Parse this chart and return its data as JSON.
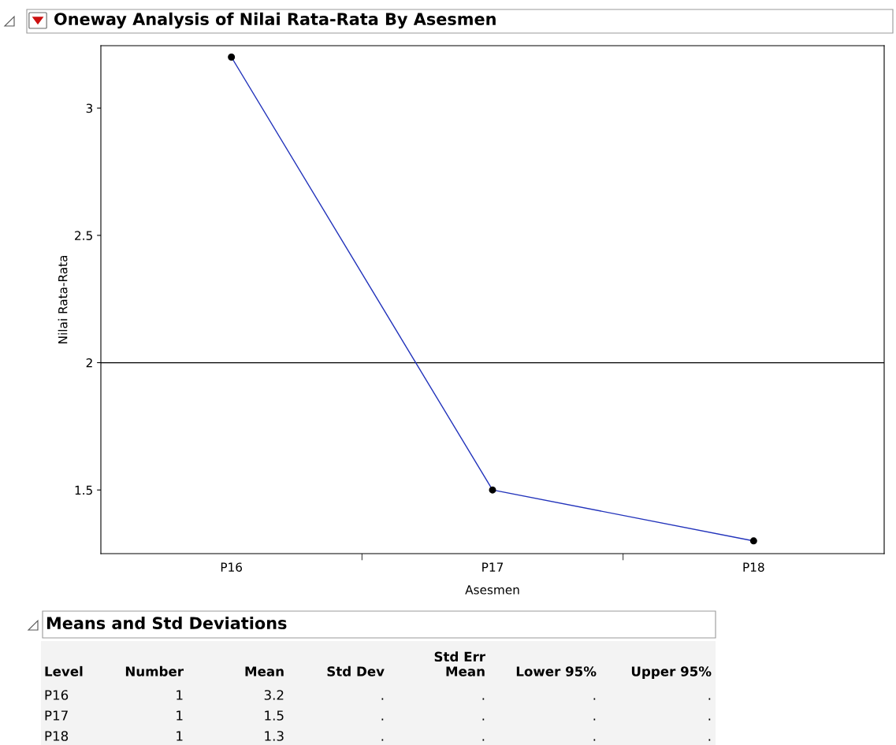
{
  "chart_data": {
    "type": "line",
    "title": "Oneway Analysis of Nilai Rata-Rata By Asesmen",
    "xlabel": "Asesmen",
    "ylabel": "Nilai Rata-Rata",
    "categories": [
      "P16",
      "P17",
      "P18"
    ],
    "series": [
      {
        "color": "#2233bb",
        "values": [
          3.2,
          1.5,
          1.3
        ]
      }
    ],
    "marker": "circle",
    "line_style": "solid",
    "ylim": [
      1.25,
      3.245
    ],
    "yticks": [
      1.5,
      2,
      2.5,
      3
    ],
    "ref_lines": [
      {
        "axis": "y",
        "value": 2,
        "color": "#000000"
      }
    ],
    "grid": false,
    "legend": false,
    "annotations": [
      "Means and Std Deviations",
      "Level",
      "Number",
      "Mean",
      "Std Dev",
      "Std Err\nMean",
      "Lower 95%",
      "Upper 95%",
      "1",
      "3.2",
      ".",
      ".",
      ".",
      ".",
      "1",
      "1.5",
      ".",
      ".",
      ".",
      ".",
      "1",
      "1.3",
      ".",
      ".",
      ".",
      "."
    ]
  }
}
